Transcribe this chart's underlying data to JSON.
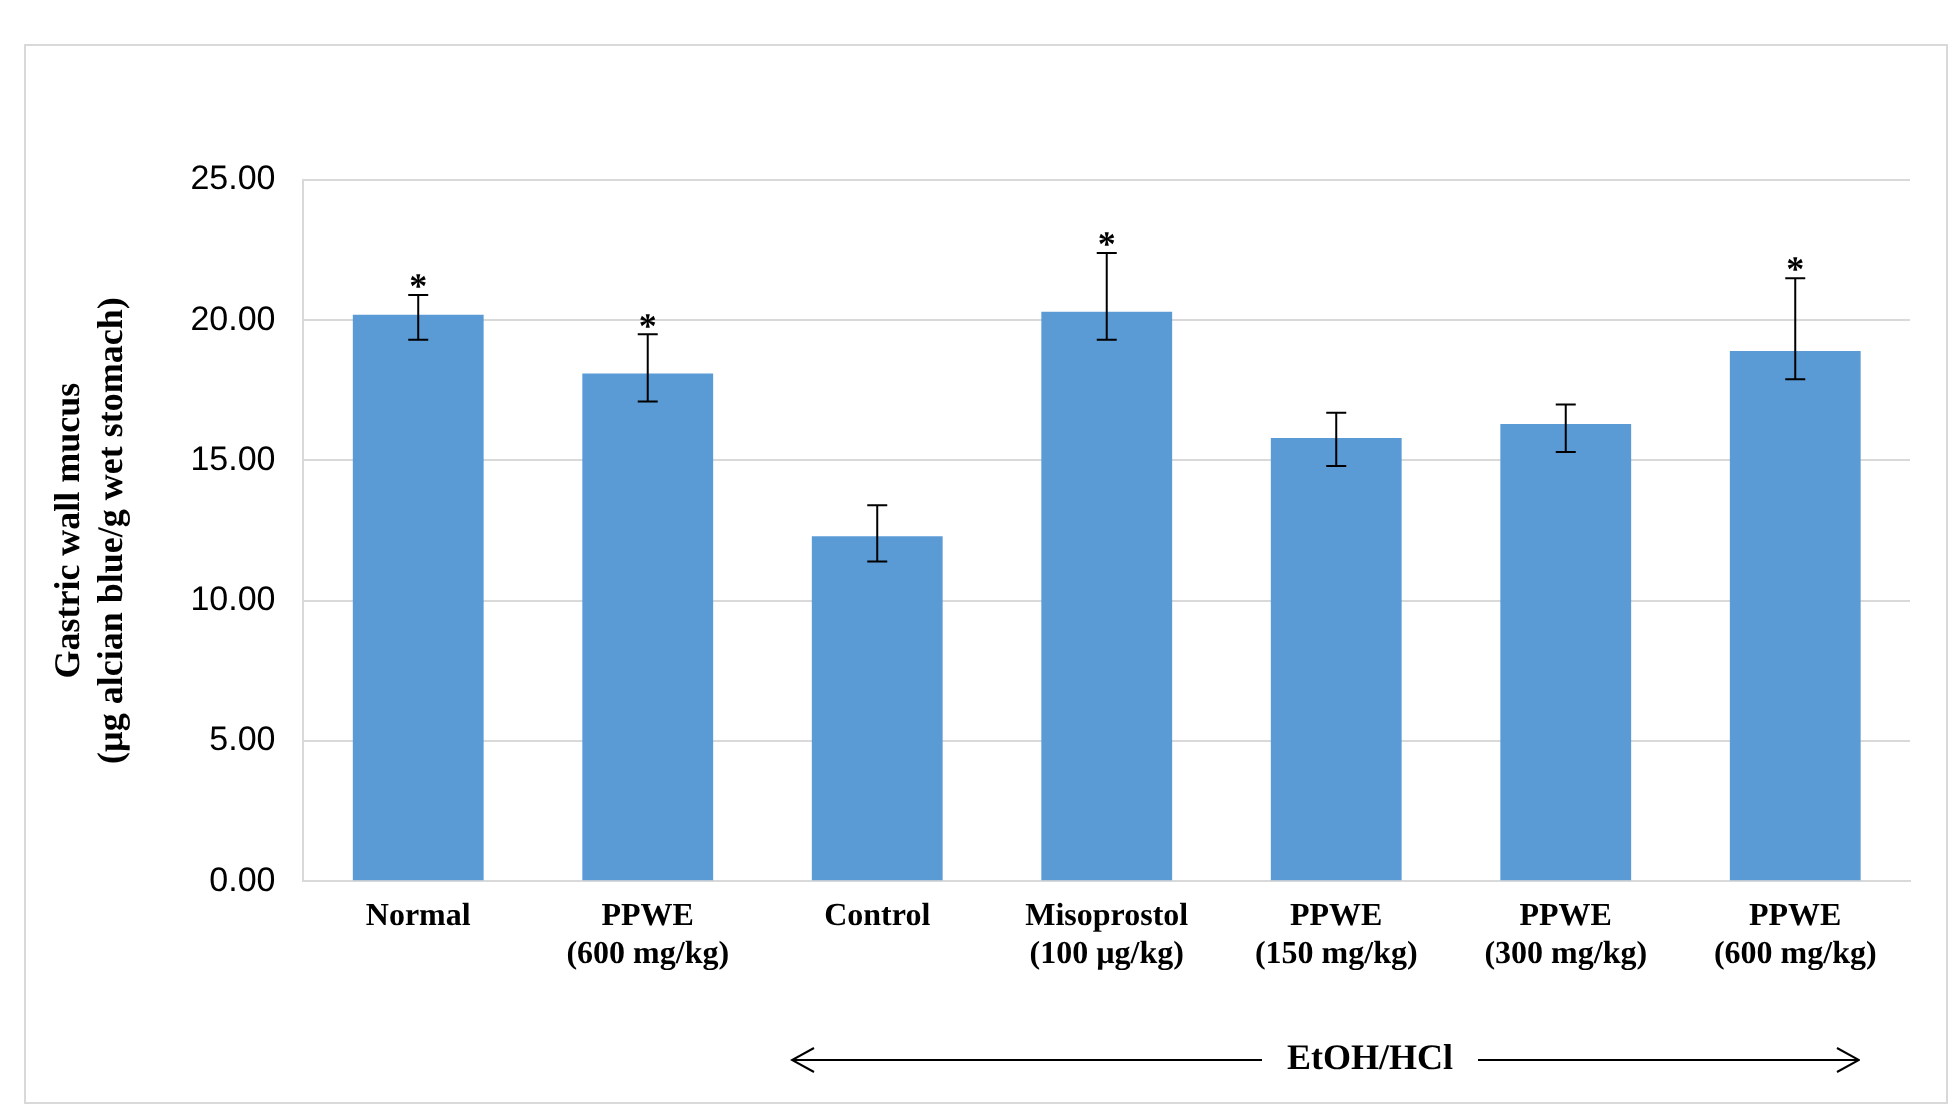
{
  "chart_data": {
    "type": "bar",
    "ylabel": "Gastric wall mucus\n(µg alcian blue/g wet stomach)",
    "categories": [
      "Normal",
      "PPWE\n(600 mg/kg)",
      "Control",
      "Misoprostol\n(100 µg/kg)",
      "PPWE\n(150 mg/kg)",
      "PPWE\n(300 mg/kg)",
      "PPWE\n(600 mg/kg)"
    ],
    "values": [
      20.2,
      18.1,
      12.3,
      20.3,
      15.8,
      16.3,
      18.9
    ],
    "errors": [
      [
        19.3,
        20.9
      ],
      [
        17.1,
        19.5
      ],
      [
        11.4,
        13.4
      ],
      [
        19.3,
        22.4
      ],
      [
        14.8,
        16.7
      ],
      [
        15.3,
        17.0
      ],
      [
        17.9,
        21.5
      ]
    ],
    "value_labels": [
      "*",
      "*",
      null,
      "*",
      null,
      null,
      "*"
    ],
    "color": "#5b9bd5",
    "ylim": [
      0,
      25
    ],
    "yticks": [
      {
        "value": 0,
        "label": "0.00"
      },
      {
        "value": 5,
        "label": "5.00"
      },
      {
        "value": 10,
        "label": "10.00"
      },
      {
        "value": 15,
        "label": "15.00"
      },
      {
        "value": 20,
        "label": "20.00"
      },
      {
        "value": 25,
        "label": "25.00"
      }
    ],
    "grid": "y",
    "legend": false,
    "annotations": [
      "EtOH/HCl"
    ]
  }
}
